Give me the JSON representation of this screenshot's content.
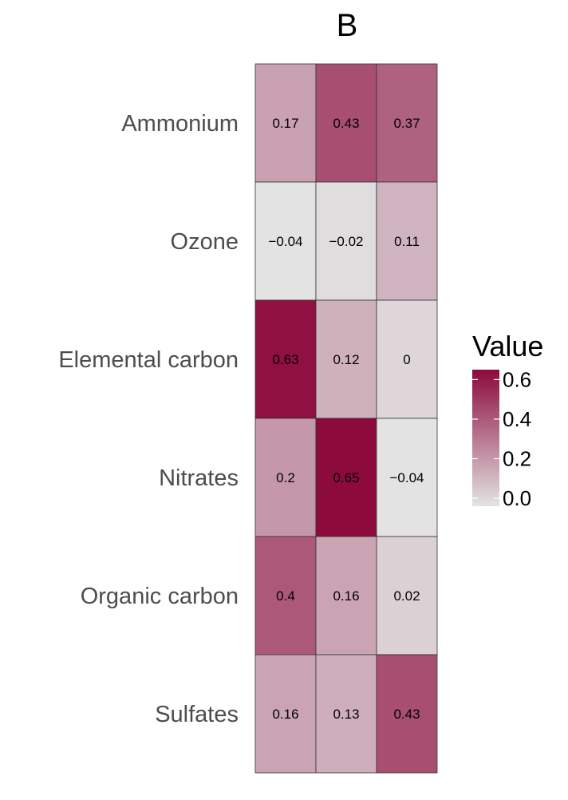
{
  "chart_data": {
    "type": "heatmap",
    "title": "B",
    "rows": [
      "Ammonium",
      "Ozone",
      "Elemental carbon",
      "Nitrates",
      "Organic carbon",
      "Sulfates"
    ],
    "columns": [
      "",
      "",
      ""
    ],
    "values": [
      [
        0.17,
        0.43,
        0.37
      ],
      [
        -0.04,
        -0.02,
        0.11
      ],
      [
        0.63,
        0.12,
        0
      ],
      [
        0.2,
        0.65,
        -0.04
      ],
      [
        0.4,
        0.16,
        0.02
      ],
      [
        0.16,
        0.13,
        0.43
      ]
    ],
    "cell_labels": [
      [
        "0.17",
        "0.43",
        "0.37"
      ],
      [
        "−0.04",
        "−0.02",
        "0.11"
      ],
      [
        "0.63",
        "0.12",
        "0"
      ],
      [
        "0.2",
        "0.65",
        "−0.04"
      ],
      [
        "0.4",
        "0.16",
        "0.02"
      ],
      [
        "0.16",
        "0.13",
        "0.43"
      ]
    ],
    "legend": {
      "title": "Value",
      "ticks": [
        0.6,
        0.4,
        0.2,
        0.0
      ],
      "tick_labels": [
        "0.6",
        "0.4",
        "0.2",
        "0.0"
      ],
      "range": [
        -0.04,
        0.65
      ],
      "placement": "right"
    },
    "colors": {
      "low": "#e3e3e3",
      "high": "#8c0a3c"
    },
    "xlabel": "",
    "ylabel": ""
  }
}
